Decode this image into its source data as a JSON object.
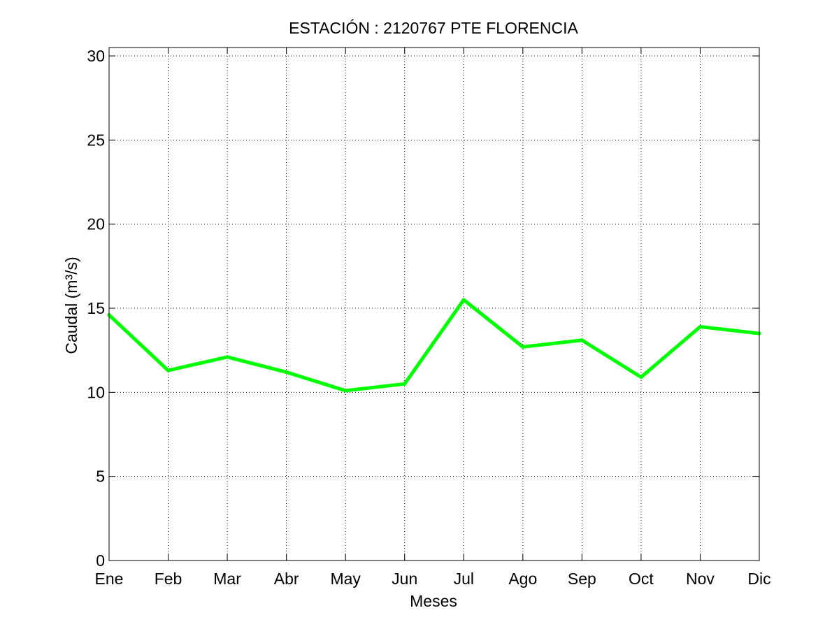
{
  "chart_data": {
    "type": "line",
    "title": "ESTACIÓN :  2120767  PTE FLORENCIA",
    "xlabel": "Meses",
    "ylabel": "Caudal (m³/s)",
    "categories": [
      "Ene",
      "Feb",
      "Mar",
      "Abr",
      "May",
      "Jun",
      "Jul",
      "Ago",
      "Sep",
      "Oct",
      "Nov",
      "Dic"
    ],
    "series": [
      {
        "values": [
          14.6,
          11.3,
          12.1,
          11.2,
          10.1,
          10.5,
          15.5,
          12.7,
          13.1,
          10.9,
          13.9,
          13.5
        ],
        "color": "#00ff00"
      }
    ],
    "ylim": [
      0,
      30.5
    ],
    "yticks": [
      0,
      5,
      10,
      15,
      20,
      25,
      30
    ],
    "grid": true,
    "grid_style": "dotted"
  }
}
